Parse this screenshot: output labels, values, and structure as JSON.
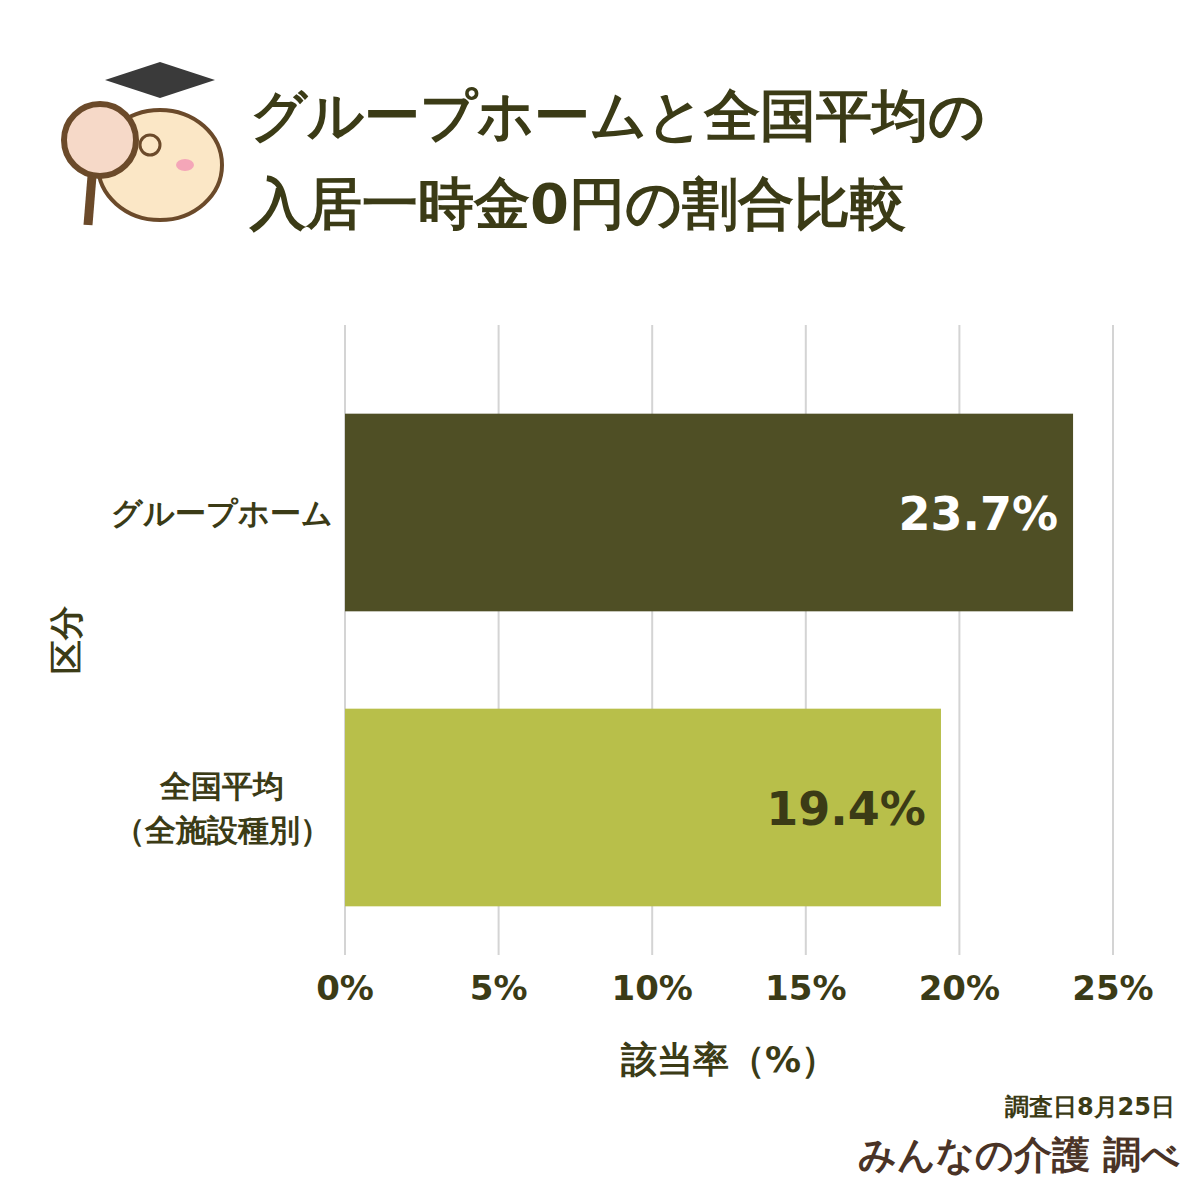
{
  "chart_data": {
    "type": "bar",
    "orientation": "horizontal",
    "title": "グループホームと全国平均の\n入居一時金0円の割合比較",
    "categories": [
      "グループホーム",
      "全国平均\n（全施設種別）"
    ],
    "values": [
      23.7,
      19.4
    ],
    "value_labels": [
      "23.7%",
      "19.4%"
    ],
    "colors": [
      "#4f4f25",
      "#b8bf4a"
    ],
    "xlim": [
      0,
      25
    ],
    "xticks": [
      {
        "value": 0,
        "label": "0%"
      },
      {
        "value": 5,
        "label": "5%"
      },
      {
        "value": 10,
        "label": "10%"
      },
      {
        "value": 15,
        "label": "15%"
      },
      {
        "value": 20,
        "label": "20%"
      },
      {
        "value": 25,
        "label": "25%"
      }
    ],
    "x_label": "該当率（%）",
    "y_label": "区分",
    "annotations": [
      "調査日8月25日",
      "みんなの介護 調べ"
    ],
    "grid": true,
    "data_labels": true
  }
}
